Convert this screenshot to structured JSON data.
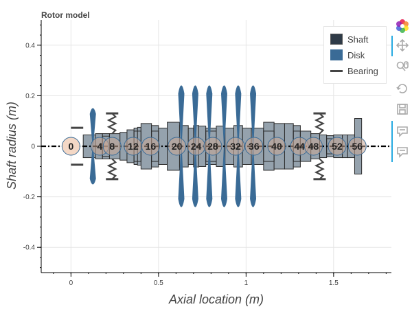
{
  "chart_data": {
    "type": "rotor_model",
    "title": "Rotor model",
    "xlabel": "Axial location (m)",
    "ylabel": "Shaft radius (m)",
    "xlim": [
      -0.17,
      1.83
    ],
    "ylim": [
      -0.5,
      0.5
    ],
    "x_ticks": [
      0,
      0.5,
      1,
      1.5
    ],
    "x_tick_labels": [
      "0",
      "0.5",
      "1",
      "1.5"
    ],
    "y_ticks": [
      -0.4,
      -0.2,
      0,
      0.2,
      0.4
    ],
    "y_tick_labels": [
      "-0.4",
      "-0.2",
      "0",
      "0.2",
      "0.4"
    ],
    "grid": true,
    "legend": {
      "position": "top-right",
      "entries": [
        {
          "name": "Shaft",
          "color": "#2f3b47"
        },
        {
          "name": "Disk",
          "color": "#3a6b96"
        },
        {
          "name": "Bearing",
          "color": "#444444"
        }
      ]
    },
    "colors": {
      "shaft_fill": "#95a2ad",
      "shaft_stroke": "#2a2a2a",
      "disk": "#3a6b96",
      "bearing": "#444444",
      "node_fill": "#c9a896",
      "node_first": "#f4d8c6",
      "centerline": "#000000"
    },
    "shaft_segments": [
      [
        0.07,
        0.14,
        0.045
      ],
      [
        0.14,
        0.18,
        0.05
      ],
      [
        0.18,
        0.22,
        0.05
      ],
      [
        0.22,
        0.28,
        0.05
      ],
      [
        0.28,
        0.32,
        0.055
      ],
      [
        0.32,
        0.36,
        0.065
      ],
      [
        0.36,
        0.38,
        0.072
      ],
      [
        0.38,
        0.4,
        0.075
      ],
      [
        0.4,
        0.46,
        0.09
      ],
      [
        0.46,
        0.5,
        0.082
      ],
      [
        0.5,
        0.55,
        0.072
      ],
      [
        0.55,
        0.62,
        0.095
      ],
      [
        0.62,
        0.67,
        0.082
      ],
      [
        0.67,
        0.7,
        0.072
      ],
      [
        0.7,
        0.73,
        0.082
      ],
      [
        0.73,
        0.77,
        0.08
      ],
      [
        0.77,
        0.83,
        0.072
      ],
      [
        0.83,
        0.88,
        0.08
      ],
      [
        0.88,
        0.93,
        0.072
      ],
      [
        0.93,
        0.98,
        0.082
      ],
      [
        0.98,
        1.03,
        0.072
      ],
      [
        1.03,
        1.1,
        0.072
      ],
      [
        1.1,
        1.16,
        0.095
      ],
      [
        1.16,
        1.22,
        0.09
      ],
      [
        1.22,
        1.27,
        0.09
      ],
      [
        1.27,
        1.31,
        0.082
      ],
      [
        1.31,
        1.37,
        0.06
      ],
      [
        1.37,
        1.42,
        0.05
      ],
      [
        1.42,
        1.46,
        0.045
      ],
      [
        1.46,
        1.5,
        0.042
      ],
      [
        1.5,
        1.55,
        0.045
      ],
      [
        1.55,
        1.58,
        0.045
      ],
      [
        1.58,
        1.62,
        0.045
      ],
      [
        1.62,
        1.66,
        0.11
      ]
    ],
    "inner_blocks": [
      [
        0.18,
        0.22,
        0.04
      ],
      [
        0.36,
        0.4,
        0.06
      ],
      [
        0.46,
        0.5,
        0.06
      ],
      [
        0.77,
        0.83,
        0.06
      ],
      [
        1.1,
        1.16,
        0.06
      ],
      [
        1.27,
        1.31,
        0.06
      ],
      [
        1.46,
        1.5,
        0.03
      ]
    ],
    "disks": [
      {
        "x": 0.125,
        "r": 0.16
      },
      {
        "x": 0.63,
        "r": 0.26
      },
      {
        "x": 0.71,
        "r": 0.26
      },
      {
        "x": 0.79,
        "r": 0.26
      },
      {
        "x": 0.875,
        "r": 0.26
      },
      {
        "x": 0.955,
        "r": 0.26
      },
      {
        "x": 1.04,
        "r": 0.26
      }
    ],
    "bearings": [
      {
        "x": 0.235,
        "y_inner": 0.05,
        "y_outer": 0.13
      },
      {
        "x": 1.42,
        "y_inner": 0.05,
        "y_outer": 0.13
      }
    ],
    "seals": [
      {
        "x": 0.035,
        "y": 0.073
      }
    ],
    "nodes": [
      {
        "x": 0,
        "label": "0"
      },
      {
        "x": 0.165,
        "label": "4"
      },
      {
        "x": 0.235,
        "label": "8"
      },
      {
        "x": 0.355,
        "label": "12"
      },
      {
        "x": 0.455,
        "label": "16"
      },
      {
        "x": 0.605,
        "label": "20"
      },
      {
        "x": 0.715,
        "label": "24"
      },
      {
        "x": 0.81,
        "label": "28"
      },
      {
        "x": 0.94,
        "label": "32"
      },
      {
        "x": 1.045,
        "label": "36"
      },
      {
        "x": 1.175,
        "label": "40"
      },
      {
        "x": 1.305,
        "label": "44"
      },
      {
        "x": 1.385,
        "label": "48"
      },
      {
        "x": 1.52,
        "label": "52"
      },
      {
        "x": 1.635,
        "label": "56"
      }
    ]
  },
  "toolbar": {
    "tools": [
      {
        "name": "bokeh-logo",
        "active": false
      },
      {
        "name": "pan-icon",
        "active": true
      },
      {
        "name": "wheel-zoom-icon",
        "active": false
      },
      {
        "name": "reset-icon",
        "active": false
      },
      {
        "name": "save-icon",
        "active": false
      },
      {
        "name": "hover-icon",
        "active": true
      },
      {
        "name": "hover-icon",
        "active": true
      }
    ]
  }
}
